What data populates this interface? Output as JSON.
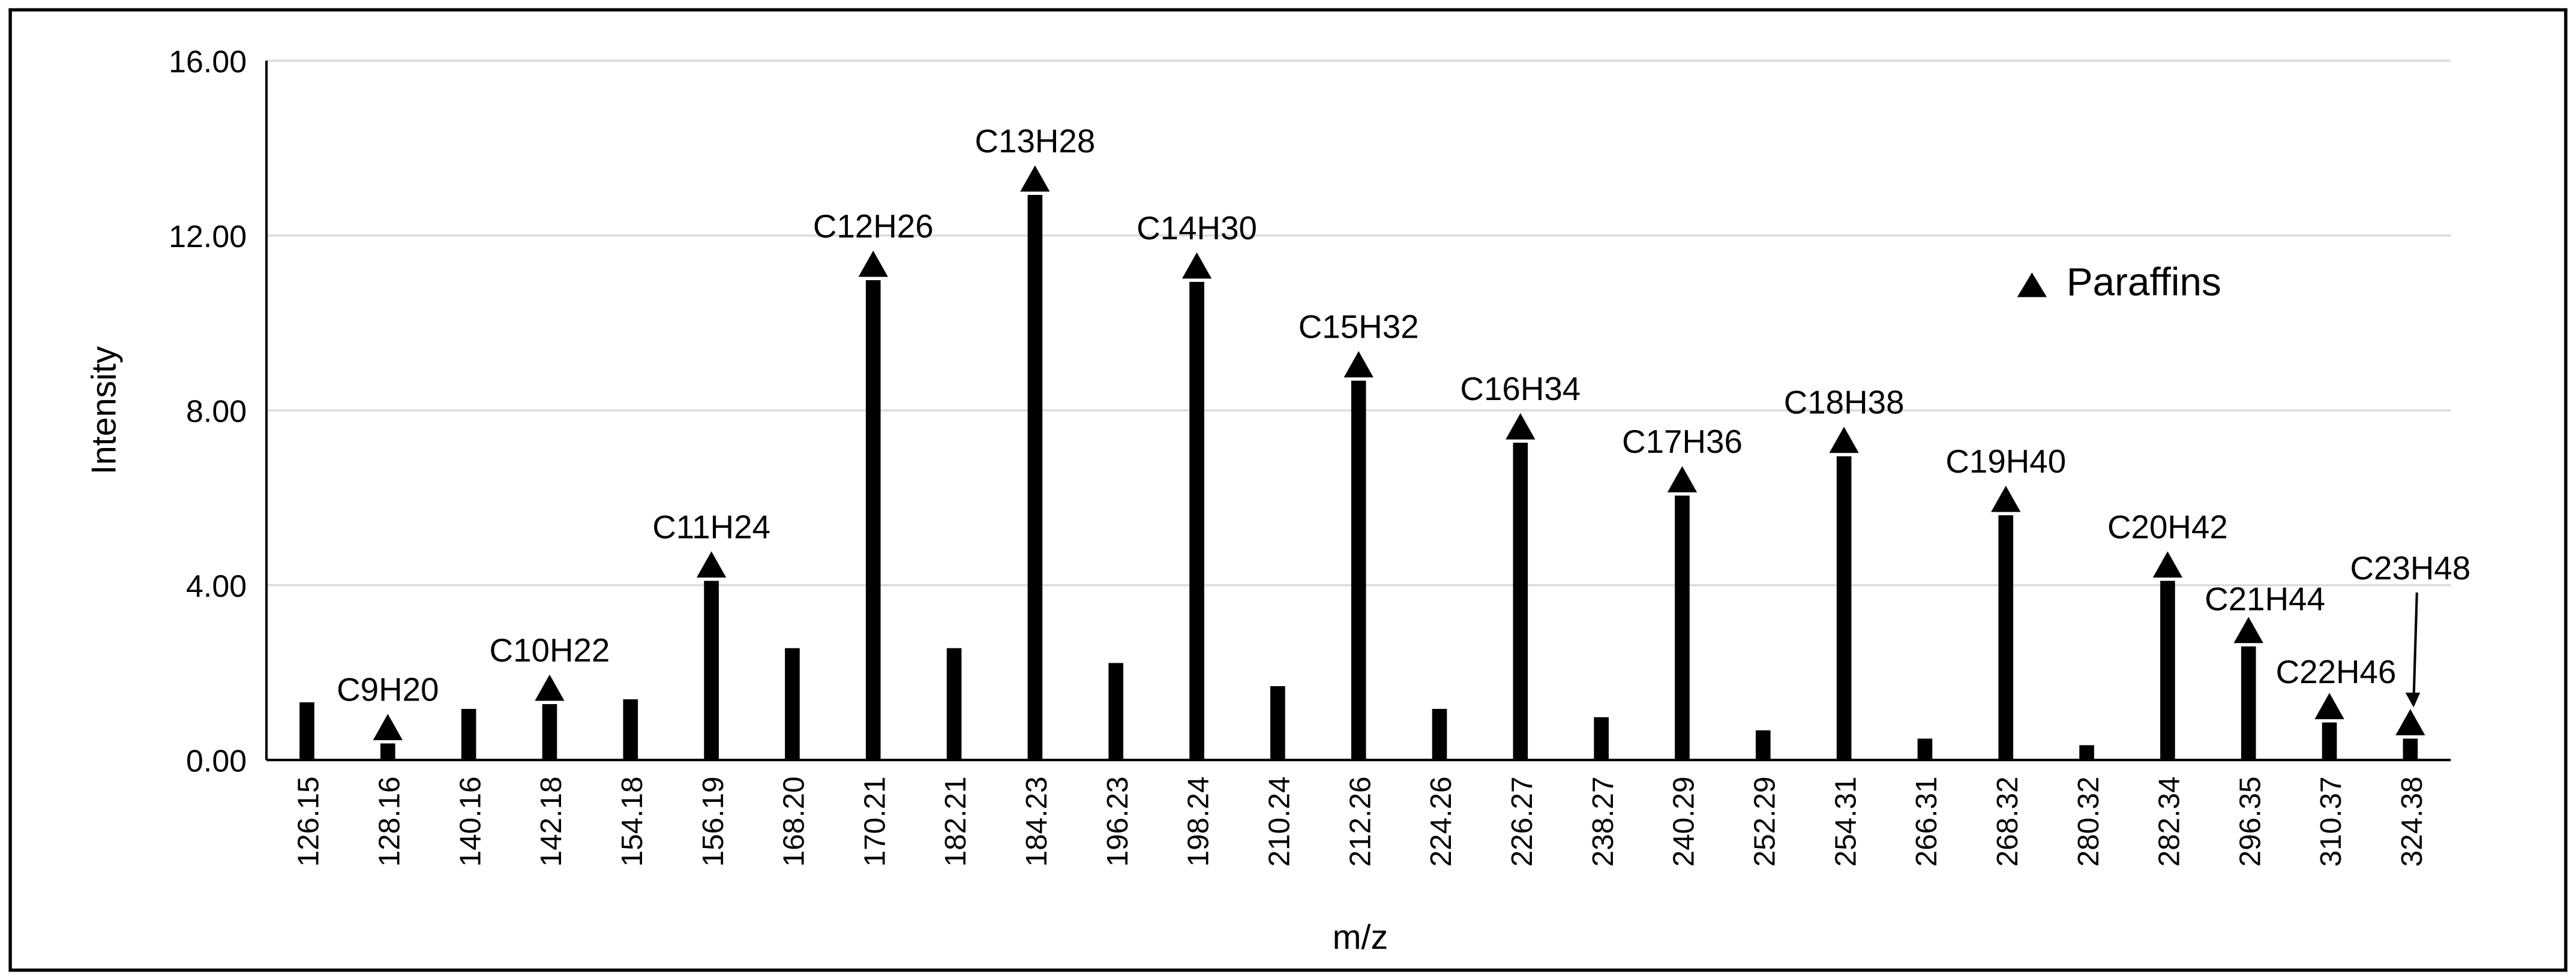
{
  "chart_data": {
    "type": "bar",
    "x_label": "m/z",
    "y_label": "Intensity",
    "categories": [
      "126.15",
      "128.16",
      "140.16",
      "142.18",
      "154.18",
      "156.19",
      "168.20",
      "170.21",
      "182.21",
      "184.23",
      "196.23",
      "198.24",
      "210.24",
      "212.26",
      "224.26",
      "226.27",
      "238.27",
      "240.29",
      "252.29",
      "254.31",
      "266.31",
      "268.32",
      "280.32",
      "282.34",
      "296.35",
      "310.37",
      "324.38"
    ],
    "values": [
      1.32,
      0.38,
      1.17,
      1.28,
      1.39,
      4.1,
      2.56,
      10.98,
      2.56,
      12.93,
      2.22,
      10.94,
      1.69,
      8.68,
      1.17,
      7.26,
      0.98,
      6.05,
      0.68,
      6.95,
      0.49,
      5.6,
      0.34,
      4.1,
      2.6,
      0.86,
      0.49
    ],
    "color": "#000000",
    "marker_name": "Paraffins",
    "marker_labels": [
      null,
      "C9H20",
      null,
      "C10H22",
      null,
      "C11H24",
      null,
      "C12H26",
      null,
      "C13H28",
      null,
      "C14H30",
      null,
      "C15H32",
      null,
      "C16H34",
      null,
      "C17H36",
      null,
      "C18H38",
      null,
      "C19H40",
      null,
      "C20H42",
      "C21H44",
      "C22H46",
      "C23H48"
    ],
    "ylim": [
      0,
      16
    ],
    "yticks": [
      {
        "value": 0,
        "label": "0.00"
      },
      {
        "value": 4,
        "label": "4.00"
      },
      {
        "value": 8,
        "label": "8.00"
      },
      {
        "value": 12,
        "label": "12.00"
      },
      {
        "value": 16,
        "label": "16.00"
      }
    ],
    "grid": true,
    "legend_position": "upper right"
  }
}
